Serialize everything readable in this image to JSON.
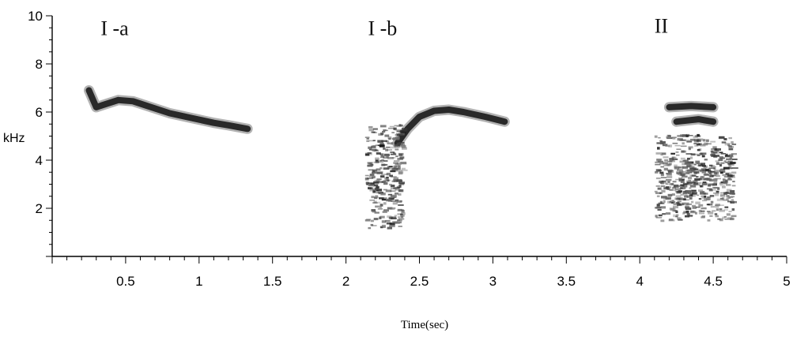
{
  "chart_data": {
    "type": "spectrogram",
    "xlabel": "Time(sec)",
    "ylabel": "kHz",
    "xlim": [
      0,
      5
    ],
    "ylim": [
      0,
      10
    ],
    "x_ticks": [
      "0.5",
      "1",
      "1.5",
      "2",
      "2.5",
      "3",
      "3.5",
      "4",
      "4.5",
      "5"
    ],
    "y_ticks": [
      "2",
      "4",
      "6",
      "8",
      "10"
    ],
    "annotations": [
      {
        "label": "I -a",
        "x": 0.33,
        "y": 9.2
      },
      {
        "label": "I -b",
        "x": 2.15,
        "y": 9.2
      },
      {
        "label": "II",
        "x": 4.1,
        "y": 9.3
      }
    ],
    "series": [
      {
        "kind": "tonal",
        "points": [
          [
            0.25,
            6.9
          ],
          [
            0.3,
            6.2
          ],
          [
            0.35,
            6.3
          ],
          [
            0.45,
            6.5
          ],
          [
            0.55,
            6.45
          ],
          [
            0.65,
            6.25
          ],
          [
            0.8,
            5.95
          ],
          [
            0.95,
            5.75
          ],
          [
            1.1,
            5.55
          ],
          [
            1.2,
            5.45
          ],
          [
            1.33,
            5.3
          ]
        ]
      },
      {
        "kind": "tonal",
        "points": [
          [
            2.35,
            4.7
          ],
          [
            2.42,
            5.3
          ],
          [
            2.5,
            5.8
          ],
          [
            2.6,
            6.05
          ],
          [
            2.7,
            6.1
          ],
          [
            2.8,
            6.0
          ],
          [
            2.95,
            5.8
          ],
          [
            3.08,
            5.6
          ]
        ]
      },
      {
        "kind": "broadband",
        "t_start": 2.13,
        "t_end": 2.38,
        "f_low": 1.2,
        "f_high": 5.5
      },
      {
        "kind": "broadband",
        "t_start": 4.1,
        "t_end": 4.63,
        "f_low": 1.5,
        "f_high": 5.1
      },
      {
        "kind": "tonal",
        "points": [
          [
            4.2,
            6.2
          ],
          [
            4.35,
            6.25
          ],
          [
            4.5,
            6.2
          ]
        ]
      },
      {
        "kind": "tonal",
        "points": [
          [
            4.25,
            5.6
          ],
          [
            4.4,
            5.7
          ],
          [
            4.5,
            5.6
          ]
        ]
      }
    ]
  }
}
